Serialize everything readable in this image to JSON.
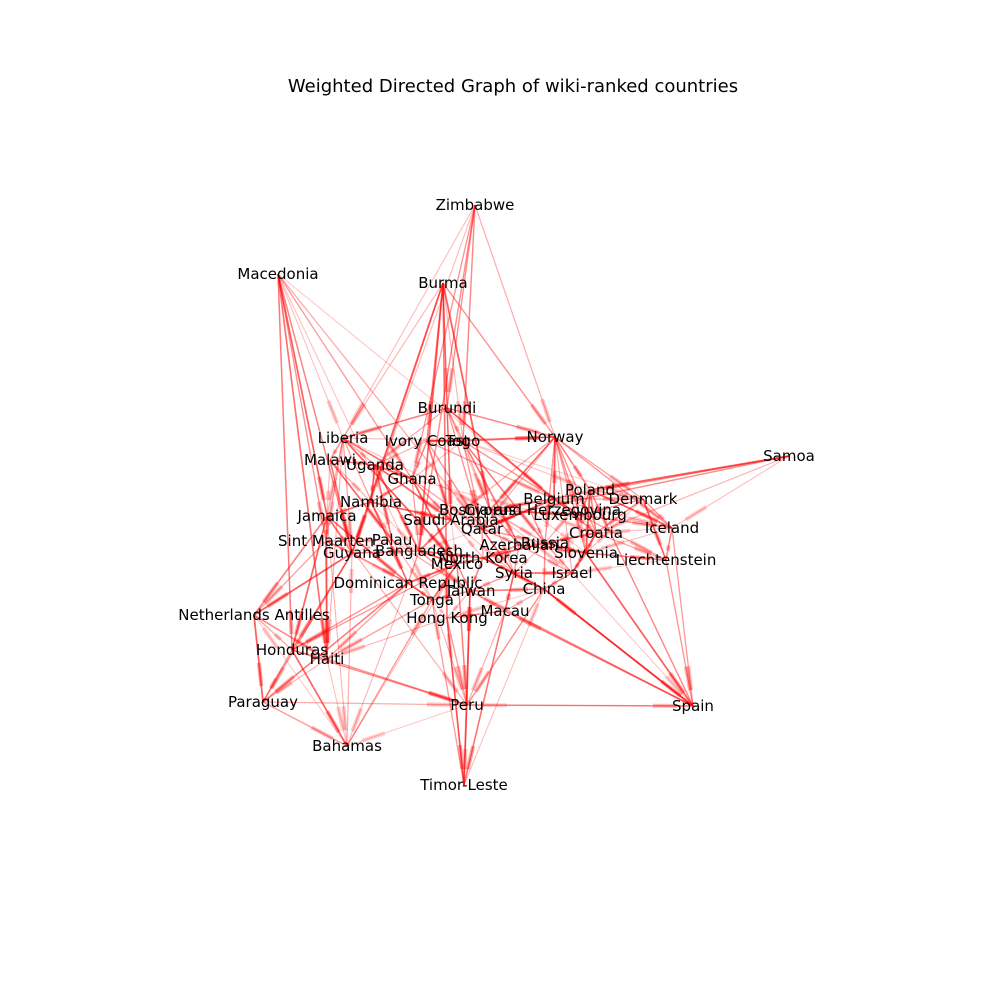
{
  "title": "Weighted Directed Graph of wiki-ranked countries",
  "edge_color": "#ff0000",
  "label_color": "#000000",
  "nodes": [
    {
      "id": "Zimbabwe"
    },
    {
      "id": "Macedonia"
    },
    {
      "id": "Burma"
    },
    {
      "id": "Samoa"
    },
    {
      "id": "Burundi"
    },
    {
      "id": "Liberia"
    },
    {
      "id": "Ivory Coast"
    },
    {
      "id": "Togo"
    },
    {
      "id": "Norway"
    },
    {
      "id": "Malawi"
    },
    {
      "id": "Uganda"
    },
    {
      "id": "Ghana"
    },
    {
      "id": "Poland"
    },
    {
      "id": "Belgium"
    },
    {
      "id": "Denmark"
    },
    {
      "id": "Namibia"
    },
    {
      "id": "Jamaica"
    },
    {
      "id": "Bosnia and Herzegovina"
    },
    {
      "id": "Cyprus"
    },
    {
      "id": "Luxembourg"
    },
    {
      "id": "Saudi Arabia"
    },
    {
      "id": "Iceland"
    },
    {
      "id": "Qatar"
    },
    {
      "id": "Croatia"
    },
    {
      "id": "Sint Maarten"
    },
    {
      "id": "Palau"
    },
    {
      "id": "Azerbaijan"
    },
    {
      "id": "Russia"
    },
    {
      "id": "Guyana"
    },
    {
      "id": "Bangladesh"
    },
    {
      "id": "Slovenia"
    },
    {
      "id": "North Korea"
    },
    {
      "id": "Liechtenstein"
    },
    {
      "id": "Mexico"
    },
    {
      "id": "Syria"
    },
    {
      "id": "Israel"
    },
    {
      "id": "Dominican Republic"
    },
    {
      "id": "Taiwan"
    },
    {
      "id": "China"
    },
    {
      "id": "Tonga"
    },
    {
      "id": "Macau"
    },
    {
      "id": "Netherlands Antilles"
    },
    {
      "id": "Hong Kong"
    },
    {
      "id": "Honduras"
    },
    {
      "id": "Haiti"
    },
    {
      "id": "Paraguay"
    },
    {
      "id": "Peru"
    },
    {
      "id": "Spain"
    },
    {
      "id": "Bahamas"
    },
    {
      "id": "Timor-Leste"
    }
  ],
  "edges": [
    {
      "source": "Zimbabwe",
      "target": "Burundi"
    },
    {
      "source": "Zimbabwe",
      "target": "Togo"
    },
    {
      "source": "Zimbabwe",
      "target": "Liberia"
    },
    {
      "source": "Zimbabwe",
      "target": "Norway"
    },
    {
      "source": "Zimbabwe",
      "target": "Ghana"
    },
    {
      "source": "Zimbabwe",
      "target": "Bangladesh"
    },
    {
      "source": "Macedonia",
      "target": "Liberia"
    },
    {
      "source": "Macedonia",
      "target": "Jamaica"
    },
    {
      "source": "Macedonia",
      "target": "Guyana"
    },
    {
      "source": "Macedonia",
      "target": "Ghana"
    },
    {
      "source": "Macedonia",
      "target": "Qatar"
    },
    {
      "source": "Macedonia",
      "target": "Haiti"
    },
    {
      "source": "Macedonia",
      "target": "Honduras"
    },
    {
      "source": "Macedonia",
      "target": "Tonga"
    },
    {
      "source": "Macedonia",
      "target": "Sint Maarten"
    },
    {
      "source": "Burma",
      "target": "Burundi"
    },
    {
      "source": "Burma",
      "target": "Ivory Coast"
    },
    {
      "source": "Burma",
      "target": "Togo"
    },
    {
      "source": "Burma",
      "target": "Saudi Arabia"
    },
    {
      "source": "Burma",
      "target": "Norway"
    },
    {
      "source": "Burma",
      "target": "Liberia"
    },
    {
      "source": "Burma",
      "target": "Namibia"
    },
    {
      "source": "Burma",
      "target": "Cyprus"
    },
    {
      "source": "Burma",
      "target": "Guyana"
    },
    {
      "source": "Samoa",
      "target": "Iceland"
    },
    {
      "source": "Samoa",
      "target": "Cyprus"
    },
    {
      "source": "Samoa",
      "target": "Poland"
    },
    {
      "source": "Samoa",
      "target": "Croatia"
    },
    {
      "source": "Burundi",
      "target": "Togo"
    },
    {
      "source": "Burundi",
      "target": "Norway"
    },
    {
      "source": "Burundi",
      "target": "Liberia"
    },
    {
      "source": "Burundi",
      "target": "Uganda"
    },
    {
      "source": "Burundi",
      "target": "Cyprus"
    },
    {
      "source": "Burundi",
      "target": "Belgium"
    },
    {
      "source": "Burundi",
      "target": "Qatar"
    },
    {
      "source": "Liberia",
      "target": "Jamaica"
    },
    {
      "source": "Liberia",
      "target": "Malawi"
    },
    {
      "source": "Liberia",
      "target": "Uganda"
    },
    {
      "source": "Liberia",
      "target": "Togo"
    },
    {
      "source": "Liberia",
      "target": "Ghana"
    },
    {
      "source": "Liberia",
      "target": "Sint Maarten"
    },
    {
      "source": "Liberia",
      "target": "Guyana"
    },
    {
      "source": "Liberia",
      "target": "Cyprus"
    },
    {
      "source": "Liberia",
      "target": "Mexico"
    },
    {
      "source": "Liberia",
      "target": "Haiti"
    },
    {
      "source": "Ivory Coast",
      "target": "Togo"
    },
    {
      "source": "Ivory Coast",
      "target": "Norway"
    },
    {
      "source": "Ivory Coast",
      "target": "Uganda"
    },
    {
      "source": "Ivory Coast",
      "target": "Ghana"
    },
    {
      "source": "Ivory Coast",
      "target": "Belgium"
    },
    {
      "source": "Ivory Coast",
      "target": "Saudi Arabia"
    },
    {
      "source": "Togo",
      "target": "Norway"
    },
    {
      "source": "Togo",
      "target": "Ghana"
    },
    {
      "source": "Togo",
      "target": "Cyprus"
    },
    {
      "source": "Togo",
      "target": "Luxembourg"
    },
    {
      "source": "Togo",
      "target": "Poland"
    },
    {
      "source": "Togo",
      "target": "Denmark"
    },
    {
      "source": "Togo",
      "target": "Qatar"
    },
    {
      "source": "Togo",
      "target": "Russia"
    },
    {
      "source": "Norway",
      "target": "Poland"
    },
    {
      "source": "Norway",
      "target": "Belgium"
    },
    {
      "source": "Norway",
      "target": "Denmark"
    },
    {
      "source": "Norway",
      "target": "Iceland"
    },
    {
      "source": "Norway",
      "target": "Luxembourg"
    },
    {
      "source": "Norway",
      "target": "Croatia"
    },
    {
      "source": "Norway",
      "target": "Cyprus"
    },
    {
      "source": "Norway",
      "target": "Russia"
    },
    {
      "source": "Norway",
      "target": "Slovenia"
    },
    {
      "source": "Norway",
      "target": "Saudi Arabia"
    },
    {
      "source": "Norway",
      "target": "Israel"
    },
    {
      "source": "Malawi",
      "target": "Uganda"
    },
    {
      "source": "Malawi",
      "target": "Jamaica"
    },
    {
      "source": "Malawi",
      "target": "Namibia"
    },
    {
      "source": "Malawi",
      "target": "Guyana"
    },
    {
      "source": "Malawi",
      "target": "Palau"
    },
    {
      "source": "Uganda",
      "target": "Ghana"
    },
    {
      "source": "Uganda",
      "target": "Namibia"
    },
    {
      "source": "Uganda",
      "target": "Saudi Arabia"
    },
    {
      "source": "Uganda",
      "target": "Palau"
    },
    {
      "source": "Ghana",
      "target": "Namibia"
    },
    {
      "source": "Ghana",
      "target": "Saudi Arabia"
    },
    {
      "source": "Ghana",
      "target": "Bosnia and Herzegovina"
    },
    {
      "source": "Ghana",
      "target": "Qatar"
    },
    {
      "source": "Ghana",
      "target": "Bangladesh"
    },
    {
      "source": "Poland",
      "target": "Belgium"
    },
    {
      "source": "Poland",
      "target": "Denmark"
    },
    {
      "source": "Poland",
      "target": "Croatia"
    },
    {
      "source": "Poland",
      "target": "Luxembourg"
    },
    {
      "source": "Poland",
      "target": "Russia"
    },
    {
      "source": "Poland",
      "target": "Iceland"
    },
    {
      "source": "Belgium",
      "target": "Luxembourg"
    },
    {
      "source": "Belgium",
      "target": "Denmark"
    },
    {
      "source": "Belgium",
      "target": "Cyprus"
    },
    {
      "source": "Belgium",
      "target": "Croatia"
    },
    {
      "source": "Belgium",
      "target": "Iceland"
    },
    {
      "source": "Belgium",
      "target": "Qatar"
    },
    {
      "source": "Denmark",
      "target": "Iceland"
    },
    {
      "source": "Denmark",
      "target": "Liechtenstein"
    },
    {
      "source": "Denmark",
      "target": "Croatia"
    },
    {
      "source": "Denmark",
      "target": "Luxembourg"
    },
    {
      "source": "Denmark",
      "target": "Slovenia"
    },
    {
      "source": "Namibia",
      "target": "Jamaica"
    },
    {
      "source": "Namibia",
      "target": "Saudi Arabia"
    },
    {
      "source": "Namibia",
      "target": "Palau"
    },
    {
      "source": "Namibia",
      "target": "Bangladesh"
    },
    {
      "source": "Namibia",
      "target": "Guyana"
    },
    {
      "source": "Jamaica",
      "target": "Sint Maarten"
    },
    {
      "source": "Jamaica",
      "target": "Guyana"
    },
    {
      "source": "Jamaica",
      "target": "Netherlands Antilles"
    },
    {
      "source": "Jamaica",
      "target": "Honduras"
    },
    {
      "source": "Jamaica",
      "target": "Haiti"
    },
    {
      "source": "Jamaica",
      "target": "Dominican Republic"
    },
    {
      "source": "Jamaica",
      "target": "Bahamas"
    },
    {
      "source": "Bosnia and Herzegovina",
      "target": "Cyprus"
    },
    {
      "source": "Bosnia and Herzegovina",
      "target": "Croatia"
    },
    {
      "source": "Bosnia and Herzegovina",
      "target": "Slovenia"
    },
    {
      "source": "Bosnia and Herzegovina",
      "target": "Russia"
    },
    {
      "source": "Bosnia and Herzegovina",
      "target": "Qatar"
    },
    {
      "source": "Cyprus",
      "target": "Luxembourg"
    },
    {
      "source": "Cyprus",
      "target": "Qatar"
    },
    {
      "source": "Cyprus",
      "target": "Azerbaijan"
    },
    {
      "source": "Cyprus",
      "target": "Israel"
    },
    {
      "source": "Cyprus",
      "target": "Syria"
    },
    {
      "source": "Luxembourg",
      "target": "Iceland"
    },
    {
      "source": "Luxembourg",
      "target": "Croatia"
    },
    {
      "source": "Luxembourg",
      "target": "Liechtenstein"
    },
    {
      "source": "Luxembourg",
      "target": "Slovenia"
    },
    {
      "source": "Saudi Arabia",
      "target": "Qatar"
    },
    {
      "source": "Saudi Arabia",
      "target": "Bangladesh"
    },
    {
      "source": "Saudi Arabia",
      "target": "Syria"
    },
    {
      "source": "Saudi Arabia",
      "target": "North Korea"
    },
    {
      "source": "Saudi Arabia",
      "target": "Mexico"
    },
    {
      "source": "Iceland",
      "target": "Liechtenstein"
    },
    {
      "source": "Iceland",
      "target": "Croatia"
    },
    {
      "source": "Iceland",
      "target": "Spain"
    },
    {
      "source": "Iceland",
      "target": "Slovenia"
    },
    {
      "source": "Qatar",
      "target": "Azerbaijan"
    },
    {
      "source": "Qatar",
      "target": "North Korea"
    },
    {
      "source": "Qatar",
      "target": "Bangladesh"
    },
    {
      "source": "Qatar",
      "target": "Syria"
    },
    {
      "source": "Qatar",
      "target": "Russia"
    },
    {
      "source": "Croatia",
      "target": "Slovenia"
    },
    {
      "source": "Croatia",
      "target": "Liechtenstein"
    },
    {
      "source": "Croatia",
      "target": "Russia"
    },
    {
      "source": "Croatia",
      "target": "Israel"
    },
    {
      "source": "Sint Maarten",
      "target": "Guyana"
    },
    {
      "source": "Sint Maarten",
      "target": "Palau"
    },
    {
      "source": "Sint Maarten",
      "target": "Netherlands Antilles"
    },
    {
      "source": "Sint Maarten",
      "target": "Dominican Republic"
    },
    {
      "source": "Sint Maarten",
      "target": "Haiti"
    },
    {
      "source": "Palau",
      "target": "Guyana"
    },
    {
      "source": "Palau",
      "target": "Bangladesh"
    },
    {
      "source": "Palau",
      "target": "Tonga"
    },
    {
      "source": "Palau",
      "target": "Taiwan"
    },
    {
      "source": "Azerbaijan",
      "target": "Russia"
    },
    {
      "source": "Azerbaijan",
      "target": "North Korea"
    },
    {
      "source": "Azerbaijan",
      "target": "Syria"
    },
    {
      "source": "Azerbaijan",
      "target": "Israel"
    },
    {
      "source": "Azerbaijan",
      "target": "Slovenia"
    },
    {
      "source": "Russia",
      "target": "Slovenia"
    },
    {
      "source": "Russia",
      "target": "China"
    },
    {
      "source": "Russia",
      "target": "Israel"
    },
    {
      "source": "Russia",
      "target": "Syria"
    },
    {
      "source": "Russia",
      "target": "North Korea"
    },
    {
      "source": "Guyana",
      "target": "Bangladesh"
    },
    {
      "source": "Guyana",
      "target": "Dominican Republic"
    },
    {
      "source": "Guyana",
      "target": "Netherlands Antilles"
    },
    {
      "source": "Guyana",
      "target": "Honduras"
    },
    {
      "source": "Guyana",
      "target": "Paraguay"
    },
    {
      "source": "Bangladesh",
      "target": "Mexico"
    },
    {
      "source": "Bangladesh",
      "target": "North Korea"
    },
    {
      "source": "Bangladesh",
      "target": "Dominican Republic"
    },
    {
      "source": "Bangladesh",
      "target": "Taiwan"
    },
    {
      "source": "Slovenia",
      "target": "Liechtenstein"
    },
    {
      "source": "Slovenia",
      "target": "Israel"
    },
    {
      "source": "Slovenia",
      "target": "Spain"
    },
    {
      "source": "North Korea",
      "target": "Mexico"
    },
    {
      "source": "North Korea",
      "target": "China"
    },
    {
      "source": "North Korea",
      "target": "Taiwan"
    },
    {
      "source": "North Korea",
      "target": "Syria"
    },
    {
      "source": "Liechtenstein",
      "target": "Spain"
    },
    {
      "source": "Liechtenstein",
      "target": "Israel"
    },
    {
      "source": "Mexico",
      "target": "Dominican Republic"
    },
    {
      "source": "Mexico",
      "target": "Taiwan"
    },
    {
      "source": "Mexico",
      "target": "Peru"
    },
    {
      "source": "Mexico",
      "target": "Honduras"
    },
    {
      "source": "Mexico",
      "target": "Tonga"
    },
    {
      "source": "Syria",
      "target": "Israel"
    },
    {
      "source": "Syria",
      "target": "China"
    },
    {
      "source": "Syria",
      "target": "Taiwan"
    },
    {
      "source": "Syria",
      "target": "Macau"
    },
    {
      "source": "Israel",
      "target": "China"
    },
    {
      "source": "Israel",
      "target": "Spain"
    },
    {
      "source": "Dominican Republic",
      "target": "Haiti"
    },
    {
      "source": "Dominican Republic",
      "target": "Honduras"
    },
    {
      "source": "Dominican Republic",
      "target": "Tonga"
    },
    {
      "source": "Dominican Republic",
      "target": "Paraguay"
    },
    {
      "source": "Dominican Republic",
      "target": "Bahamas"
    },
    {
      "source": "Taiwan",
      "target": "China"
    },
    {
      "source": "Taiwan",
      "target": "Hong Kong"
    },
    {
      "source": "Taiwan",
      "target": "Macau"
    },
    {
      "source": "Taiwan",
      "target": "Tonga"
    },
    {
      "source": "China",
      "target": "Macau"
    },
    {
      "source": "China",
      "target": "Hong Kong"
    },
    {
      "source": "China",
      "target": "Spain"
    },
    {
      "source": "China",
      "target": "Peru"
    },
    {
      "source": "Tonga",
      "target": "Hong Kong"
    },
    {
      "source": "Tonga",
      "target": "Haiti"
    },
    {
      "source": "Tonga",
      "target": "Peru"
    },
    {
      "source": "Macau",
      "target": "Hong Kong"
    },
    {
      "source": "Macau",
      "target": "Peru"
    },
    {
      "source": "Macau",
      "target": "Timor-Leste"
    },
    {
      "source": "Netherlands Antilles",
      "target": "Honduras"
    },
    {
      "source": "Netherlands Antilles",
      "target": "Paraguay"
    },
    {
      "source": "Netherlands Antilles",
      "target": "Haiti"
    },
    {
      "source": "Hong Kong",
      "target": "Peru"
    },
    {
      "source": "Hong Kong",
      "target": "Timor-Leste"
    },
    {
      "source": "Hong Kong",
      "target": "Haiti"
    },
    {
      "source": "Honduras",
      "target": "Haiti"
    },
    {
      "source": "Honduras",
      "target": "Paraguay"
    },
    {
      "source": "Honduras",
      "target": "Bahamas"
    },
    {
      "source": "Honduras",
      "target": "Peru"
    },
    {
      "source": "Haiti",
      "target": "Bahamas"
    },
    {
      "source": "Haiti",
      "target": "Paraguay"
    },
    {
      "source": "Haiti",
      "target": "Peru"
    },
    {
      "source": "Paraguay",
      "target": "Peru"
    },
    {
      "source": "Paraguay",
      "target": "Bahamas"
    },
    {
      "source": "Peru",
      "target": "Spain"
    },
    {
      "source": "Peru",
      "target": "Timor-Leste"
    },
    {
      "source": "Peru",
      "target": "Bahamas"
    },
    {
      "source": "Spain",
      "target": "Peru"
    },
    {
      "source": "Spain",
      "target": "Macau"
    },
    {
      "source": "Spain",
      "target": "Taiwan"
    },
    {
      "source": "Spain",
      "target": "Poland"
    },
    {
      "source": "Timor-Leste",
      "target": "Taiwan"
    },
    {
      "source": "Timor-Leste",
      "target": "China"
    },
    {
      "source": "Timor-Leste",
      "target": "Tonga"
    },
    {
      "source": "Bahamas",
      "target": "Guyana"
    },
    {
      "source": "Bahamas",
      "target": "Tonga"
    },
    {
      "source": "Bahamas",
      "target": "Netherlands Antilles"
    },
    {
      "source": "Zimbabwe",
      "target": "Guyana"
    },
    {
      "source": "Burma",
      "target": "Hong Kong"
    },
    {
      "source": "Burma",
      "target": "Bangladesh"
    },
    {
      "source": "Macedonia",
      "target": "Croatia"
    },
    {
      "source": "Samoa",
      "target": "Bosnia and Herzegovina"
    },
    {
      "source": "Burundi",
      "target": "Saudi Arabia"
    },
    {
      "source": "Liberia",
      "target": "Dominican Republic"
    },
    {
      "source": "Norway",
      "target": "Qatar"
    },
    {
      "source": "Togo",
      "target": "Azerbaijan"
    },
    {
      "source": "Ivory Coast",
      "target": "Qatar"
    },
    {
      "source": "Jamaica",
      "target": "Peru"
    },
    {
      "source": "Namibia",
      "target": "Dominican Republic"
    },
    {
      "source": "Uganda",
      "target": "Bangladesh"
    },
    {
      "source": "Ghana",
      "target": "Mexico"
    },
    {
      "source": "Cyprus",
      "target": "Russia"
    },
    {
      "source": "Poland",
      "target": "Slovenia"
    },
    {
      "source": "Spain",
      "target": "China"
    },
    {
      "source": "Peru",
      "target": "Taiwan"
    },
    {
      "source": "Bahamas",
      "target": "Mexico"
    },
    {
      "source": "Timor-Leste",
      "target": "Hong Kong"
    }
  ]
}
